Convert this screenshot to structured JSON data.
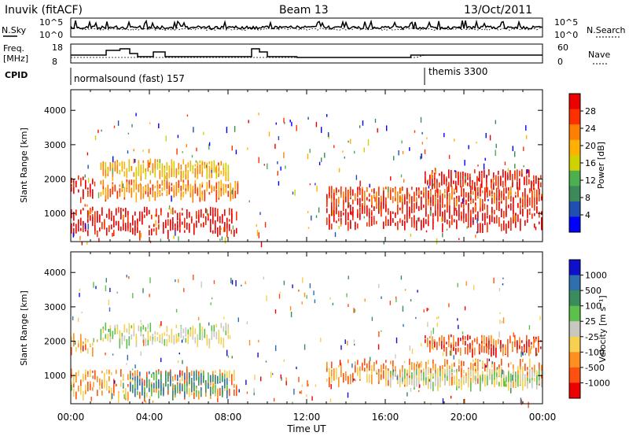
{
  "header": {
    "station": "Inuvik (fitACF)",
    "beam": "Beam 13",
    "date": "13/Oct/2011"
  },
  "noise_panel": {
    "left_label": "N.Sky",
    "left_ticks": [
      "10^5",
      "10^0"
    ],
    "right_label": "N.Search",
    "right_ticks": [
      "10^5",
      "10^0"
    ]
  },
  "freq_panel": {
    "left_label_1": "Freq.",
    "left_label_2": "[MHz]",
    "left_ticks": [
      "18",
      "8"
    ],
    "right_label": "Nave",
    "right_ticks": [
      "60",
      "0"
    ]
  },
  "cpid_panel": {
    "label": "CPID",
    "modes": [
      "normalsound (fast) 157",
      "themis 3300"
    ]
  },
  "colors": {
    "power_scale": [
      "#0000ff",
      "#1f4fb0",
      "#3c8a5a",
      "#4caf50",
      "#cfd200",
      "#ffb000",
      "#ff8000",
      "#ff3000",
      "#ee0000"
    ],
    "velocity_scale": [
      "#1010cc",
      "#2f6fb0",
      "#3a8c5c",
      "#5cc04a",
      "#c8c8c0",
      "#f8d050",
      "#ff9020",
      "#ff5010",
      "#ee0000"
    ]
  },
  "chart_data": [
    {
      "type": "heatmap",
      "name": "power",
      "xlabel": "Time UT",
      "ylabel": "Slant Range [km]",
      "x_ticks": [
        "00:00",
        "04:00",
        "08:00",
        "12:00",
        "16:00",
        "20:00",
        "00:00"
      ],
      "y_ticks": [
        "1000",
        "2000",
        "3000",
        "4000"
      ],
      "xlim_hours": [
        0,
        24
      ],
      "ylim_km": [
        180,
        4600
      ],
      "colorbar_label": "Power [dB]",
      "colorbar_ticks": [
        "28",
        "24",
        "20",
        "16",
        "12",
        "8",
        "4"
      ],
      "bands_km": [
        {
          "start_h": 0.0,
          "end_h": 8.5,
          "center": 850,
          "width": 350,
          "level": 8
        },
        {
          "start_h": 0.0,
          "end_h": 1.2,
          "center": 1900,
          "width": 250,
          "level": 8
        },
        {
          "start_h": 1.5,
          "end_h": 8.5,
          "center": 1800,
          "width": 200,
          "level": 6
        },
        {
          "start_h": 1.5,
          "end_h": 8.0,
          "center": 2400,
          "width": 200,
          "level": 5
        },
        {
          "start_h": 13.0,
          "end_h": 24.0,
          "center": 1050,
          "width": 350,
          "level": 8
        },
        {
          "start_h": 13.0,
          "end_h": 24.0,
          "center": 1600,
          "width": 200,
          "level": 7
        },
        {
          "start_h": 18.0,
          "end_h": 24.0,
          "center": 2100,
          "width": 200,
          "level": 8
        }
      ]
    },
    {
      "type": "heatmap",
      "name": "velocity",
      "xlabel": "Time UT",
      "ylabel": "Slant Range [km]",
      "x_ticks": [
        "00:00",
        "04:00",
        "08:00",
        "12:00",
        "16:00",
        "20:00",
        "00:00"
      ],
      "y_ticks": [
        "1000",
        "2000",
        "3000",
        "4000"
      ],
      "xlim_hours": [
        0,
        24
      ],
      "ylim_km": [
        180,
        4600
      ],
      "colorbar_label": "Velocity [m s⁻¹]",
      "colorbar_ticks": [
        "1000",
        "500",
        "100",
        "25",
        "-25",
        "-100",
        "-500",
        "-1000"
      ],
      "bands_km": [
        {
          "start_h": 0.0,
          "end_h": 8.5,
          "center": 850,
          "width": 350,
          "level": 6
        },
        {
          "start_h": 3.0,
          "end_h": 8.0,
          "center": 850,
          "width": 300,
          "level": 2
        },
        {
          "start_h": 0.0,
          "end_h": 1.2,
          "center": 2000,
          "width": 250,
          "level": 6
        },
        {
          "start_h": 1.5,
          "end_h": 8.0,
          "center": 2300,
          "width": 250,
          "level": 4
        },
        {
          "start_h": 13.0,
          "end_h": 24.0,
          "center": 1200,
          "width": 300,
          "level": 6
        },
        {
          "start_h": 16.0,
          "end_h": 24.0,
          "center": 1000,
          "width": 200,
          "level": 4
        },
        {
          "start_h": 18.0,
          "end_h": 24.0,
          "center": 2000,
          "width": 200,
          "level": 7
        }
      ]
    }
  ]
}
